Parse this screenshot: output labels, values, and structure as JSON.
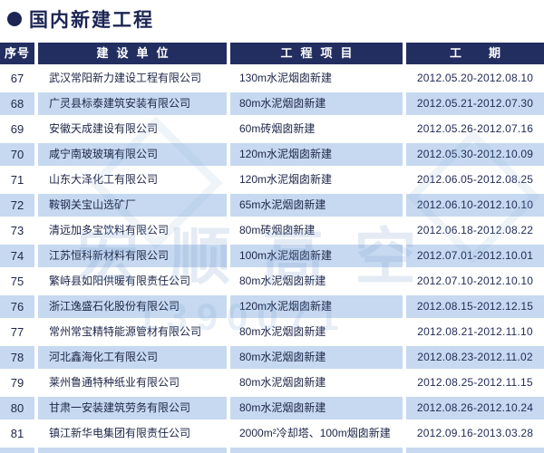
{
  "page": {
    "title": "国内新建工程",
    "bullet_icon": "circle-bullet"
  },
  "table": {
    "headers": [
      "序号",
      "建设单位",
      "工程项目",
      "工期"
    ],
    "rows": [
      {
        "no": "67",
        "company": "武汉常阳新力建设工程有限公司",
        "project": "130m水泥烟囱新建",
        "period": "2012.05.20-2012.08.10"
      },
      {
        "no": "68",
        "company": "广灵县标泰建筑安装有限公司",
        "project": "80m水泥烟囱新建",
        "period": "2012.05.21-2012.07.30"
      },
      {
        "no": "69",
        "company": "安徽天成建设有限公司",
        "project": "60m砖烟囱新建",
        "period": "2012.05.26-2012.07.16"
      },
      {
        "no": "70",
        "company": "咸宁南玻玻璃有限公司",
        "project": "120m水泥烟囱新建",
        "period": "2012.05.30-2012.10.09"
      },
      {
        "no": "71",
        "company": "山东大泽化工有限公司",
        "project": "120m水泥烟囱新建",
        "period": "2012.06.05-2012.08.25"
      },
      {
        "no": "72",
        "company": "鞍钢关宝山选矿厂",
        "project": "65m水泥烟囱新建",
        "period": "2012.06.10-2012.10.10"
      },
      {
        "no": "73",
        "company": "清远加多宝饮料有限公司",
        "project": "80m砖烟囱新建",
        "period": "2012.06.18-2012.08.22"
      },
      {
        "no": "74",
        "company": "江苏恒科新材料有限公司",
        "project": "100m水泥烟囱新建",
        "period": "2012.07.01-2012.10.01"
      },
      {
        "no": "75",
        "company": "繁峙县如阳供暖有限责任公司",
        "project": "80m水泥烟囱新建",
        "period": "2012.07.10-2012.10.10"
      },
      {
        "no": "76",
        "company": "浙江逸盛石化股份有限公司",
        "project": "120m水泥烟囱新建",
        "period": "2012.08.15-2012.12.15"
      },
      {
        "no": "77",
        "company": "常州常宝精特能源管材有限公司",
        "project": "80m水泥烟囱新建",
        "period": "2012.08.21-2012.11.10"
      },
      {
        "no": "78",
        "company": "河北鑫海化工有限公司",
        "project": "80m水泥烟囱新建",
        "period": "2012.08.23-2012.11.02"
      },
      {
        "no": "79",
        "company": "莱州鲁通特种纸业有限公司",
        "project": "80m水泥烟囱新建",
        "period": "2012.08.25-2012.11.15"
      },
      {
        "no": "80",
        "company": "甘肃一安装建筑劳务有限公司",
        "project": "80m水泥烟囱新建",
        "period": "2012.08.26-2012.10.24"
      },
      {
        "no": "81",
        "company": "镇江新华电集团有限责任公司",
        "project": "2000m²冷却塔、100m烟囱新建",
        "period": "2012.09.16-2013.03.28"
      }
    ]
  },
  "watermark": {
    "brand": "宏顺高空",
    "digits": "1390071"
  },
  "colors": {
    "header_navy": "#232e60",
    "title_navy": "#1c2553",
    "row_alt_blue": "#c6d9f0",
    "body_text": "#20284a"
  }
}
